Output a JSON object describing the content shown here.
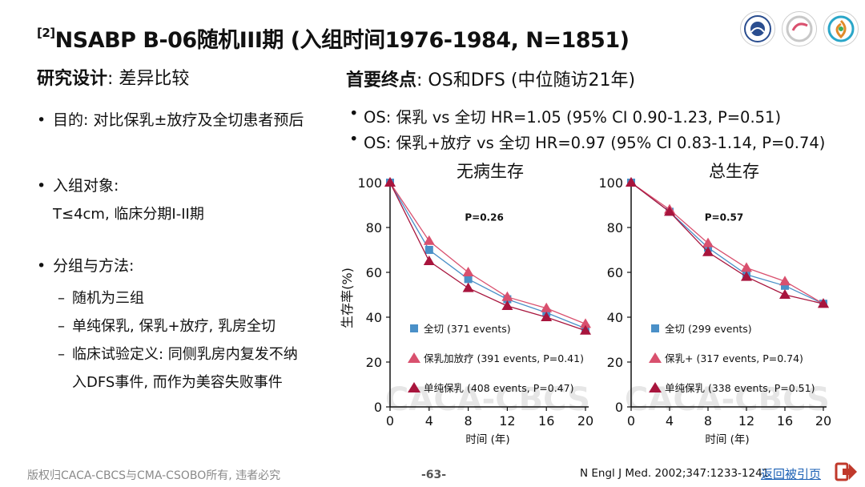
{
  "header": {
    "ref": "[2]",
    "title": "NSABP B-06随机III期 (入组时间1976-1984, N=1851)"
  },
  "left": {
    "head_label": "研究设计",
    "head_value": ": 差异比较",
    "bullets": [
      {
        "text": "目的: 对比保乳±放疗及全切患者预后"
      },
      {
        "text": "入组对象:"
      },
      {
        "text": "分组与方法:"
      }
    ],
    "criteria": "T≤4cm, 临床分期I-II期",
    "subitems": [
      "随机为三组",
      "单纯保乳, 保乳+放疗, 乳房全切",
      "临床试验定义: 同侧乳房内复发不纳",
      "入DFS事件, 而作为美容失败事件"
    ]
  },
  "right": {
    "head_label": "首要终点",
    "head_value": ": OS和DFS (中位随访21年)",
    "bullets": [
      "OS: 保乳 vs 全切 HR=1.05 (95% CI 0.90-1.23, P=0.51)",
      "OS: 保乳+放疗 vs 全切 HR=0.97 (95% CI 0.83-1.14, P=0.74)"
    ]
  },
  "chart_data": [
    {
      "type": "line",
      "title": "无病生存",
      "xlabel": "时间 (年)",
      "ylabel": "生存率(%)",
      "xlim": [
        0,
        20
      ],
      "ylim": [
        0,
        100
      ],
      "x": [
        0,
        4,
        8,
        12,
        16,
        20
      ],
      "annotation": "P=0.26",
      "watermark": "CACA-CBCS",
      "series": [
        {
          "name": "全切 (371 events)",
          "marker": "square",
          "color": "#4a90c8",
          "values": [
            100,
            70,
            57,
            48,
            42,
            35
          ]
        },
        {
          "name": "保乳加放疗 (391 events, P=0.41)",
          "marker": "triangle",
          "color": "#d9506e",
          "values": [
            100,
            74,
            60,
            49,
            44,
            37
          ]
        },
        {
          "name": "单纯保乳 (408 events, P=0.47)",
          "marker": "triangle",
          "color": "#a8153d",
          "values": [
            100,
            65,
            53,
            45,
            40,
            34
          ]
        }
      ]
    },
    {
      "type": "line",
      "title": "总生存",
      "xlabel": "时间 (年)",
      "ylabel": "",
      "xlim": [
        0,
        20
      ],
      "ylim": [
        0,
        100
      ],
      "x": [
        0,
        4,
        8,
        12,
        16,
        20
      ],
      "annotation": "P=0.57",
      "watermark": "CACA-CBCS",
      "series": [
        {
          "name": "全切 (299 events)",
          "marker": "square",
          "color": "#4a90c8",
          "values": [
            100,
            87,
            71,
            59,
            54,
            46
          ]
        },
        {
          "name": "保乳+ (317 events, P=0.74)",
          "marker": "triangle",
          "color": "#d9506e",
          "values": [
            100,
            88,
            73,
            62,
            56,
            46
          ]
        },
        {
          "name": "单纯保乳 (338 events, P=0.51)",
          "marker": "triangle",
          "color": "#a8153d",
          "values": [
            100,
            87,
            69,
            58,
            50,
            46
          ]
        }
      ]
    }
  ],
  "footer": {
    "copyright": "版权归CACA-CBCS与CMA-CSOBO所有, 违者必究",
    "page": "-63-",
    "citation": "N Engl J Med. 2002;347:1233-1241",
    "back_link": "返回被引页"
  },
  "colors": {
    "accent_red": "#c0392b",
    "link_blue": "#1a5fb4",
    "footer_gray": "#8a8a8a"
  },
  "icons": [
    "emblem-logo-icon",
    "bcs-logo-icon",
    "spiral-logo-icon",
    "arrow-right-icon"
  ]
}
